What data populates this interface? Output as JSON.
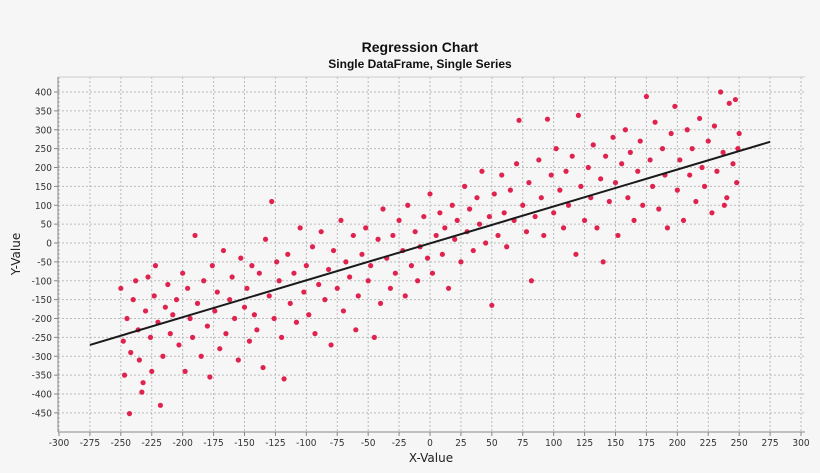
{
  "chart_data": {
    "type": "scatter",
    "title": "Regression Chart",
    "subtitle": "Single DataFrame, Single Series",
    "xlabel": "X-Value",
    "ylabel": "Y-Value",
    "xlim": [
      -300,
      300
    ],
    "ylim": [
      -490,
      440
    ],
    "xticks": [
      -300,
      -275,
      -250,
      -225,
      -200,
      -175,
      -150,
      -125,
      -100,
      -75,
      -50,
      -25,
      0,
      25,
      50,
      75,
      100,
      125,
      150,
      175,
      200,
      225,
      250,
      275,
      300
    ],
    "yticks": [
      400,
      350,
      300,
      250,
      200,
      150,
      100,
      50,
      0,
      -50,
      -100,
      -150,
      -200,
      -250,
      -300,
      -350,
      -400,
      -450
    ],
    "grid": true,
    "legend": "none",
    "point_color": "#e0234e",
    "line_color": "#1a1a1a",
    "regression_line": {
      "x": [
        -275,
        275
      ],
      "y": [
        -270,
        268
      ]
    },
    "points": [
      [
        -250,
        -120
      ],
      [
        -248,
        -260
      ],
      [
        -247,
        -350
      ],
      [
        -245,
        -200
      ],
      [
        -243,
        -452
      ],
      [
        -242,
        -290
      ],
      [
        -240,
        -150
      ],
      [
        -238,
        -100
      ],
      [
        -236,
        -230
      ],
      [
        -235,
        -310
      ],
      [
        -233,
        -395
      ],
      [
        -232,
        -370
      ],
      [
        -230,
        -180
      ],
      [
        -228,
        -90
      ],
      [
        -226,
        -250
      ],
      [
        -225,
        -340
      ],
      [
        -223,
        -140
      ],
      [
        -222,
        -60
      ],
      [
        -220,
        -210
      ],
      [
        -218,
        -430
      ],
      [
        -216,
        -300
      ],
      [
        -214,
        -170
      ],
      [
        -212,
        -110
      ],
      [
        -210,
        -240
      ],
      [
        -208,
        -190
      ],
      [
        -205,
        -150
      ],
      [
        -203,
        -270
      ],
      [
        -200,
        -80
      ],
      [
        -198,
        -340
      ],
      [
        -196,
        -120
      ],
      [
        -194,
        -200
      ],
      [
        -192,
        -250
      ],
      [
        -190,
        20
      ],
      [
        -188,
        -160
      ],
      [
        -185,
        -300
      ],
      [
        -183,
        -100
      ],
      [
        -180,
        -220
      ],
      [
        -178,
        -355
      ],
      [
        -176,
        -60
      ],
      [
        -174,
        -180
      ],
      [
        -172,
        -130
      ],
      [
        -170,
        -280
      ],
      [
        -167,
        -20
      ],
      [
        -165,
        -240
      ],
      [
        -162,
        -150
      ],
      [
        -160,
        -90
      ],
      [
        -158,
        -200
      ],
      [
        -155,
        -310
      ],
      [
        -153,
        -40
      ],
      [
        -150,
        -170
      ],
      [
        -148,
        -120
      ],
      [
        -146,
        -260
      ],
      [
        -144,
        -60
      ],
      [
        -142,
        -190
      ],
      [
        -140,
        -230
      ],
      [
        -138,
        -80
      ],
      [
        -135,
        -330
      ],
      [
        -133,
        10
      ],
      [
        -130,
        -140
      ],
      [
        -128,
        110
      ],
      [
        -126,
        -200
      ],
      [
        -124,
        -50
      ],
      [
        -122,
        -100
      ],
      [
        -120,
        -250
      ],
      [
        -118,
        -360
      ],
      [
        -115,
        -30
      ],
      [
        -113,
        -160
      ],
      [
        -110,
        -80
      ],
      [
        -108,
        -210
      ],
      [
        -105,
        40
      ],
      [
        -102,
        -130
      ],
      [
        -100,
        -60
      ],
      [
        -98,
        -190
      ],
      [
        -95,
        -10
      ],
      [
        -93,
        -240
      ],
      [
        -90,
        -110
      ],
      [
        -88,
        30
      ],
      [
        -85,
        -150
      ],
      [
        -82,
        -70
      ],
      [
        -80,
        -270
      ],
      [
        -78,
        -20
      ],
      [
        -75,
        -120
      ],
      [
        -72,
        60
      ],
      [
        -70,
        -180
      ],
      [
        -68,
        -50
      ],
      [
        -65,
        -90
      ],
      [
        -62,
        20
      ],
      [
        -60,
        -230
      ],
      [
        -58,
        -140
      ],
      [
        -55,
        -30
      ],
      [
        -52,
        40
      ],
      [
        -50,
        -100
      ],
      [
        -48,
        -60
      ],
      [
        -45,
        -250
      ],
      [
        -42,
        10
      ],
      [
        -40,
        -160
      ],
      [
        -38,
        90
      ],
      [
        -35,
        -40
      ],
      [
        -32,
        -120
      ],
      [
        -30,
        20
      ],
      [
        -28,
        -80
      ],
      [
        -25,
        60
      ],
      [
        -22,
        -20
      ],
      [
        -20,
        -140
      ],
      [
        -18,
        100
      ],
      [
        -15,
        -60
      ],
      [
        -12,
        30
      ],
      [
        -10,
        -100
      ],
      [
        -8,
        -10
      ],
      [
        -5,
        70
      ],
      [
        -2,
        -40
      ],
      [
        0,
        130
      ],
      [
        2,
        -80
      ],
      [
        5,
        20
      ],
      [
        8,
        80
      ],
      [
        10,
        -30
      ],
      [
        12,
        40
      ],
      [
        15,
        -120
      ],
      [
        18,
        100
      ],
      [
        20,
        10
      ],
      [
        22,
        60
      ],
      [
        25,
        -50
      ],
      [
        28,
        150
      ],
      [
        30,
        30
      ],
      [
        32,
        90
      ],
      [
        35,
        -20
      ],
      [
        38,
        120
      ],
      [
        40,
        50
      ],
      [
        42,
        190
      ],
      [
        45,
        0
      ],
      [
        48,
        70
      ],
      [
        50,
        -165
      ],
      [
        52,
        130
      ],
      [
        55,
        20
      ],
      [
        58,
        180
      ],
      [
        60,
        80
      ],
      [
        62,
        -10
      ],
      [
        65,
        140
      ],
      [
        68,
        60
      ],
      [
        70,
        210
      ],
      [
        72,
        325
      ],
      [
        75,
        100
      ],
      [
        78,
        30
      ],
      [
        80,
        160
      ],
      [
        82,
        -100
      ],
      [
        85,
        70
      ],
      [
        88,
        220
      ],
      [
        90,
        120
      ],
      [
        92,
        20
      ],
      [
        95,
        328
      ],
      [
        98,
        180
      ],
      [
        100,
        80
      ],
      [
        102,
        250
      ],
      [
        105,
        140
      ],
      [
        108,
        40
      ],
      [
        110,
        190
      ],
      [
        112,
        100
      ],
      [
        115,
        230
      ],
      [
        118,
        -30
      ],
      [
        120,
        338
      ],
      [
        122,
        150
      ],
      [
        125,
        60
      ],
      [
        128,
        200
      ],
      [
        130,
        120
      ],
      [
        132,
        260
      ],
      [
        135,
        40
      ],
      [
        138,
        170
      ],
      [
        140,
        -50
      ],
      [
        142,
        230
      ],
      [
        145,
        110
      ],
      [
        148,
        280
      ],
      [
        150,
        160
      ],
      [
        152,
        20
      ],
      [
        155,
        210
      ],
      [
        158,
        300
      ],
      [
        160,
        120
      ],
      [
        162,
        240
      ],
      [
        165,
        60
      ],
      [
        168,
        190
      ],
      [
        170,
        270
      ],
      [
        172,
        100
      ],
      [
        175,
        388
      ],
      [
        178,
        220
      ],
      [
        180,
        150
      ],
      [
        182,
        320
      ],
      [
        185,
        90
      ],
      [
        188,
        250
      ],
      [
        190,
        180
      ],
      [
        192,
        40
      ],
      [
        195,
        290
      ],
      [
        198,
        362
      ],
      [
        200,
        140
      ],
      [
        202,
        220
      ],
      [
        205,
        60
      ],
      [
        208,
        300
      ],
      [
        210,
        180
      ],
      [
        212,
        250
      ],
      [
        215,
        110
      ],
      [
        218,
        330
      ],
      [
        220,
        200
      ],
      [
        222,
        150
      ],
      [
        225,
        270
      ],
      [
        228,
        80
      ],
      [
        230,
        310
      ],
      [
        232,
        190
      ],
      [
        235,
        400
      ],
      [
        237,
        240
      ],
      [
        240,
        120
      ],
      [
        242,
        370
      ],
      [
        245,
        210
      ],
      [
        247,
        380
      ],
      [
        248,
        160
      ],
      [
        250,
        290
      ],
      [
        249,
        250
      ],
      [
        238,
        100
      ]
    ]
  }
}
